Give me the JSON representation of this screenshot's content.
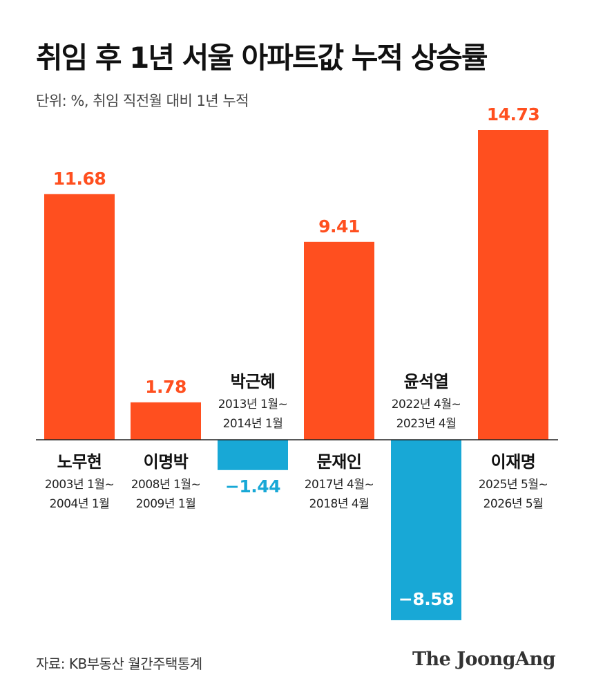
{
  "chart_data": {
    "type": "bar",
    "title": "취임 후 1년 서울 아파트값 누적 상승률",
    "subtitle": "단위: %, 취임 직전월 대비 1년 누적",
    "ylim": [
      -8.58,
      14.73
    ],
    "grid": false,
    "legend": "none",
    "categories": [
      "노무현",
      "이명박",
      "박근혜",
      "문재인",
      "윤석열",
      "이재명"
    ],
    "periods": [
      [
        "2003년 1월~",
        "2004년 1월"
      ],
      [
        "2008년 1월~",
        "2009년 1월"
      ],
      [
        "2013년 1월~",
        "2014년 1월"
      ],
      [
        "2017년 4월~",
        "2018년 4월"
      ],
      [
        "2022년 4월~",
        "2023년 4월"
      ],
      [
        "2025년 5월~",
        "2026년 5월"
      ]
    ],
    "values": [
      11.68,
      1.78,
      -1.44,
      9.41,
      -8.58,
      14.73
    ],
    "value_labels": [
      "11.68",
      "1.78",
      "−1.44",
      "9.41",
      "−8.58",
      "14.73"
    ],
    "colors": {
      "positive": "#ff4f1f",
      "negative": "#18a8d6",
      "axis": "#222222"
    }
  },
  "footer": {
    "source": "자료: KB부동산 월간주택통계",
    "brand": "The JoongAng"
  }
}
